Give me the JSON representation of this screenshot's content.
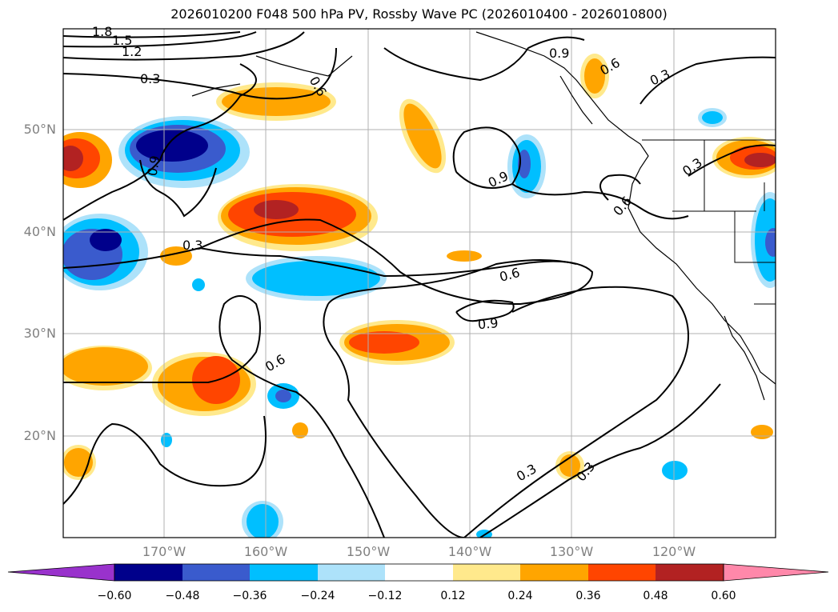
{
  "title": "2026010200 F048 500 hPa PV, Rossby Wave PC (2026010400 - 2026010800)",
  "map": {
    "region": "North Pacific / western North America",
    "lat_labels": [
      "50°N",
      "40°N",
      "30°N",
      "20°N"
    ],
    "lon_labels": [
      "170°W",
      "160°W",
      "150°W",
      "140°W",
      "130°W",
      "120°W"
    ],
    "filled_field": "Rossby Wave PC",
    "contour_field": "500 hPa PV",
    "contour_labels": [
      "1.8",
      "1.5",
      "1.2",
      "0.3",
      "0.3",
      "0.6",
      "0.9",
      "0.3",
      "0.6",
      "0.9",
      "0.6",
      "0.6",
      "0.9",
      "0.3",
      "0.3",
      "0.3",
      "0.6",
      "0.9"
    ]
  },
  "colorbar": {
    "ticks": [
      "−0.60",
      "−0.48",
      "−0.36",
      "−0.24",
      "−0.12",
      "0.12",
      "0.24",
      "0.36",
      "0.48",
      "0.60"
    ],
    "colors": [
      "#9932cc",
      "#00008b",
      "#3a5bcd",
      "#00bfff",
      "#ade2fa",
      "#ffffff",
      "#ffe98c",
      "#ffa500",
      "#ff4500",
      "#b22222",
      "#ff88aa"
    ]
  }
}
